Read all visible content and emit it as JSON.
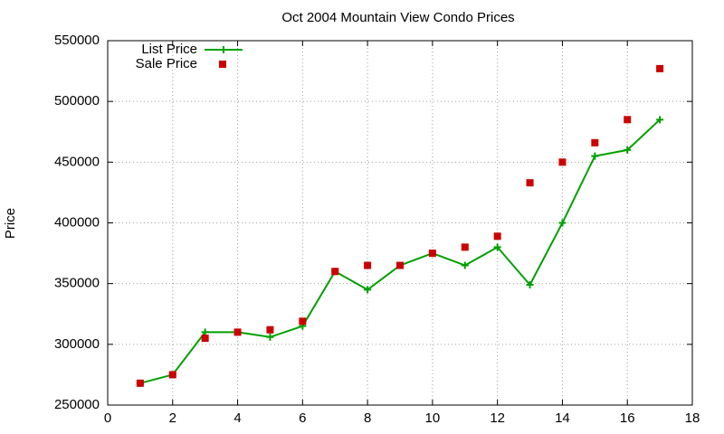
{
  "chart_data": {
    "type": "line",
    "title": "Oct 2004 Mountain View Condo Prices",
    "y_label": "Price",
    "x": [
      1,
      2,
      3,
      4,
      5,
      6,
      7,
      8,
      9,
      10,
      11,
      12,
      13,
      14,
      15,
      16,
      17
    ],
    "series": [
      {
        "name": "List Price",
        "color": "#00a000",
        "style": "linespoints",
        "values": [
          268000,
          275000,
          310000,
          310000,
          306000,
          315000,
          360000,
          345000,
          365000,
          375000,
          365000,
          380000,
          349000,
          400000,
          455000,
          460000,
          485000
        ]
      },
      {
        "name": "Sale Price",
        "color": "#cc0000",
        "style": "points",
        "values": [
          268000,
          275000,
          305000,
          310000,
          312000,
          319000,
          360000,
          365000,
          365000,
          375000,
          380000,
          389000,
          433000,
          450000,
          466000,
          485000,
          527000
        ]
      }
    ],
    "xlim": [
      0,
      18
    ],
    "xticks": [
      0,
      2,
      4,
      6,
      8,
      10,
      12,
      14,
      16,
      18
    ],
    "ylim": [
      250000,
      550000
    ],
    "yticks": [
      250000,
      300000,
      350000,
      400000,
      450000,
      500000,
      550000
    ],
    "grid": true,
    "legend": "top-left"
  }
}
